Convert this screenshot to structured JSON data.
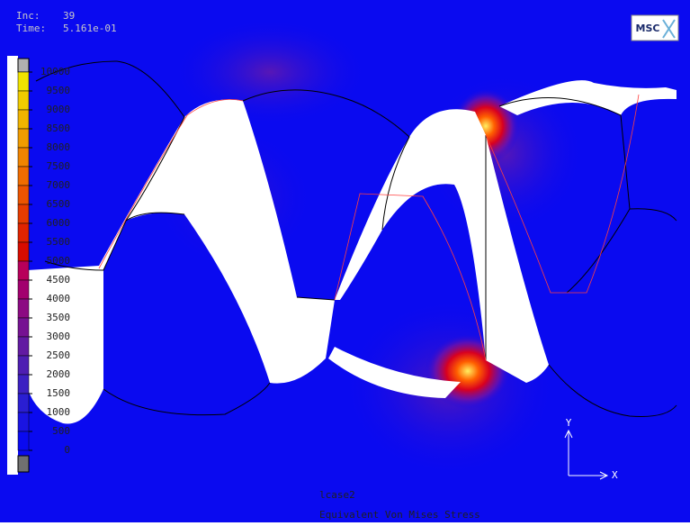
{
  "header": {
    "inc_label": "Inc:",
    "inc": 39,
    "time_label": "Time:",
    "time": "5.161e-01"
  },
  "logo": "MSC",
  "legend": {
    "ticks": [
      10000,
      9500,
      9000,
      8500,
      8000,
      7500,
      7000,
      6500,
      6000,
      5500,
      5000,
      4500,
      4000,
      3500,
      3000,
      2500,
      2000,
      1500,
      1000,
      500,
      0
    ],
    "colors": [
      "#f0e400",
      "#f0cc00",
      "#f0b400",
      "#f09c00",
      "#f08400",
      "#f06c00",
      "#ec5400",
      "#e63c00",
      "#e02400",
      "#d80c00",
      "#b8005a",
      "#a2006e",
      "#8c0a82",
      "#761292",
      "#621aa2",
      "#4e1eb2",
      "#3c20c2",
      "#2a1ed2",
      "#1a14e2",
      "#0a0af0"
    ],
    "over_color": "#b0b0b0",
    "under_color": "#707070"
  },
  "footer": {
    "load_case": "lcase2",
    "quantity": "Equivalent Von Mises Stress"
  },
  "axes": {
    "y": "Y",
    "x": "X"
  }
}
